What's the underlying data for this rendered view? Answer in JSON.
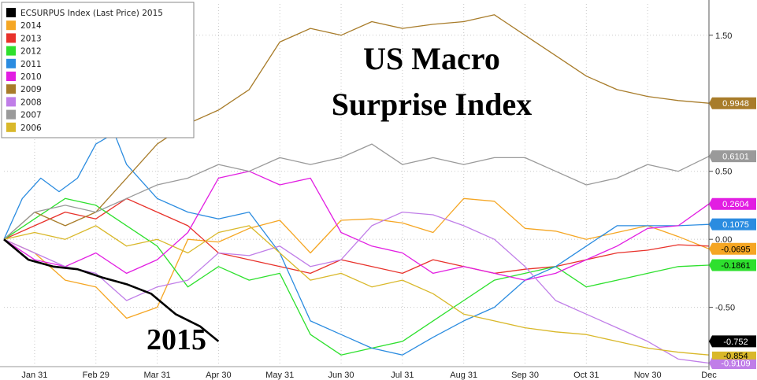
{
  "chart_data": {
    "type": "line",
    "title_lines": [
      "US Macro",
      "Surprise Index"
    ],
    "annotation": "2015",
    "x_ticks": [
      "Jan 31",
      "Feb 29",
      "Mar 31",
      "Apr 30",
      "May 31",
      "Jun 30",
      "Jul 31",
      "Aug 31",
      "Sep 30",
      "Oct 31",
      "Nov 30",
      "Dec"
    ],
    "y_ticks": [
      "1.50",
      "0.50",
      "0.00",
      "-0.50"
    ],
    "y_tick_values": [
      1.5,
      0.5,
      0.0,
      -0.5
    ],
    "ylim": [
      -0.93,
      1.73
    ],
    "x_range_months": [
      0,
      11.5
    ],
    "grid": true,
    "legend_position": "top-left",
    "series": [
      {
        "name": "ECSURPUS Index (Last Price) 2015",
        "color": "#000000",
        "last_label": "-0.752",
        "points": [
          [
            0,
            0
          ],
          [
            0.4,
            -0.15
          ],
          [
            0.8,
            -0.2
          ],
          [
            1.2,
            -0.22
          ],
          [
            1.6,
            -0.28
          ],
          [
            2.0,
            -0.33
          ],
          [
            2.4,
            -0.4
          ],
          [
            2.8,
            -0.55
          ],
          [
            3.2,
            -0.64
          ],
          [
            3.5,
            -0.75
          ]
        ]
      },
      {
        "name": "2014",
        "color": "#f5a623",
        "last_label": "-0.0695",
        "points": [
          [
            0,
            0
          ],
          [
            0.5,
            -0.1
          ],
          [
            1.0,
            -0.3
          ],
          [
            1.5,
            -0.35
          ],
          [
            2.0,
            -0.58
          ],
          [
            2.5,
            -0.5
          ],
          [
            3.0,
            0.0
          ],
          [
            3.5,
            -0.02
          ],
          [
            4.0,
            0.08
          ],
          [
            4.5,
            0.14
          ],
          [
            5.0,
            -0.1
          ],
          [
            5.5,
            0.14
          ],
          [
            6.0,
            0.15
          ],
          [
            6.5,
            0.12
          ],
          [
            7.0,
            0.05
          ],
          [
            7.5,
            0.3
          ],
          [
            8.0,
            0.28
          ],
          [
            8.5,
            0.08
          ],
          [
            9.0,
            0.06
          ],
          [
            9.5,
            0.0
          ],
          [
            10.0,
            0.05
          ],
          [
            10.5,
            0.1
          ],
          [
            11.0,
            0.02
          ],
          [
            11.5,
            -0.07
          ]
        ]
      },
      {
        "name": "2013",
        "color": "#e8322b",
        "last_label": "",
        "points": [
          [
            0,
            0
          ],
          [
            0.5,
            0.1
          ],
          [
            1.0,
            0.2
          ],
          [
            1.5,
            0.15
          ],
          [
            2.0,
            0.3
          ],
          [
            2.5,
            0.2
          ],
          [
            3.0,
            0.1
          ],
          [
            3.5,
            -0.1
          ],
          [
            4.0,
            -0.15
          ],
          [
            4.5,
            -0.2
          ],
          [
            5.0,
            -0.25
          ],
          [
            5.5,
            -0.15
          ],
          [
            6.0,
            -0.2
          ],
          [
            6.5,
            -0.25
          ],
          [
            7.0,
            -0.15
          ],
          [
            7.5,
            -0.2
          ],
          [
            8.0,
            -0.25
          ],
          [
            8.5,
            -0.22
          ],
          [
            9.0,
            -0.2
          ],
          [
            9.5,
            -0.15
          ],
          [
            10.0,
            -0.1
          ],
          [
            10.5,
            -0.08
          ],
          [
            11.0,
            -0.04
          ],
          [
            11.5,
            -0.05
          ]
        ]
      },
      {
        "name": "2012",
        "color": "#2ee02e",
        "last_label": "-0.1861",
        "points": [
          [
            0,
            0
          ],
          [
            0.5,
            0.15
          ],
          [
            1.0,
            0.3
          ],
          [
            1.5,
            0.25
          ],
          [
            2.0,
            0.1
          ],
          [
            2.5,
            -0.05
          ],
          [
            3.0,
            -0.35
          ],
          [
            3.5,
            -0.2
          ],
          [
            4.0,
            -0.3
          ],
          [
            4.5,
            -0.25
          ],
          [
            5.0,
            -0.7
          ],
          [
            5.5,
            -0.85
          ],
          [
            6.0,
            -0.8
          ],
          [
            6.5,
            -0.75
          ],
          [
            7.0,
            -0.6
          ],
          [
            7.5,
            -0.45
          ],
          [
            8.0,
            -0.3
          ],
          [
            8.5,
            -0.25
          ],
          [
            9.0,
            -0.2
          ],
          [
            9.5,
            -0.35
          ],
          [
            10.0,
            -0.3
          ],
          [
            10.5,
            -0.25
          ],
          [
            11.0,
            -0.2
          ],
          [
            11.5,
            -0.19
          ]
        ]
      },
      {
        "name": "2011",
        "color": "#2b8ce0",
        "last_label": "0.1075",
        "points": [
          [
            0,
            0
          ],
          [
            0.3,
            0.3
          ],
          [
            0.6,
            0.45
          ],
          [
            0.9,
            0.35
          ],
          [
            1.2,
            0.45
          ],
          [
            1.5,
            0.7
          ],
          [
            1.8,
            0.78
          ],
          [
            2.0,
            0.55
          ],
          [
            2.5,
            0.3
          ],
          [
            3.0,
            0.2
          ],
          [
            3.5,
            0.15
          ],
          [
            4.0,
            0.2
          ],
          [
            4.5,
            -0.1
          ],
          [
            5.0,
            -0.6
          ],
          [
            5.5,
            -0.7
          ],
          [
            6.0,
            -0.8
          ],
          [
            6.5,
            -0.85
          ],
          [
            7.0,
            -0.72
          ],
          [
            7.5,
            -0.6
          ],
          [
            8.0,
            -0.5
          ],
          [
            8.5,
            -0.3
          ],
          [
            9.0,
            -0.2
          ],
          [
            9.5,
            -0.05
          ],
          [
            10.0,
            0.1
          ],
          [
            10.5,
            0.1
          ],
          [
            11.0,
            0.1
          ],
          [
            11.5,
            0.11
          ]
        ]
      },
      {
        "name": "2010",
        "color": "#e21ee2",
        "last_label": "0.2604",
        "points": [
          [
            0,
            0
          ],
          [
            0.5,
            -0.15
          ],
          [
            1.0,
            -0.2
          ],
          [
            1.5,
            -0.1
          ],
          [
            2.0,
            -0.25
          ],
          [
            2.5,
            -0.15
          ],
          [
            3.0,
            0.05
          ],
          [
            3.5,
            0.45
          ],
          [
            4.0,
            0.5
          ],
          [
            4.5,
            0.4
          ],
          [
            5.0,
            0.45
          ],
          [
            5.5,
            0.05
          ],
          [
            6.0,
            -0.05
          ],
          [
            6.5,
            -0.1
          ],
          [
            7.0,
            -0.25
          ],
          [
            7.5,
            -0.2
          ],
          [
            8.0,
            -0.25
          ],
          [
            8.5,
            -0.3
          ],
          [
            9.0,
            -0.25
          ],
          [
            9.5,
            -0.15
          ],
          [
            10.0,
            -0.05
          ],
          [
            10.5,
            0.08
          ],
          [
            11.0,
            0.1
          ],
          [
            11.5,
            0.26
          ]
        ]
      },
      {
        "name": "2009",
        "color": "#a87c2a",
        "last_label": "0.9948",
        "points": [
          [
            0,
            0
          ],
          [
            0.5,
            0.2
          ],
          [
            1.0,
            0.1
          ],
          [
            1.5,
            0.2
          ],
          [
            2.0,
            0.45
          ],
          [
            2.5,
            0.7
          ],
          [
            3.0,
            0.85
          ],
          [
            3.5,
            0.95
          ],
          [
            4.0,
            1.1
          ],
          [
            4.5,
            1.45
          ],
          [
            5.0,
            1.55
          ],
          [
            5.5,
            1.5
          ],
          [
            6.0,
            1.6
          ],
          [
            6.5,
            1.55
          ],
          [
            7.0,
            1.58
          ],
          [
            7.5,
            1.6
          ],
          [
            8.0,
            1.65
          ],
          [
            8.5,
            1.5
          ],
          [
            9.0,
            1.35
          ],
          [
            9.5,
            1.2
          ],
          [
            10.0,
            1.1
          ],
          [
            10.5,
            1.05
          ],
          [
            11.0,
            1.02
          ],
          [
            11.5,
            1.0
          ]
        ]
      },
      {
        "name": "2008",
        "color": "#c07ee8",
        "last_label": "-0.9109",
        "points": [
          [
            0,
            0
          ],
          [
            0.5,
            -0.1
          ],
          [
            1.0,
            -0.2
          ],
          [
            1.5,
            -0.25
          ],
          [
            2.0,
            -0.45
          ],
          [
            2.5,
            -0.35
          ],
          [
            3.0,
            -0.3
          ],
          [
            3.5,
            -0.1
          ],
          [
            4.0,
            -0.12
          ],
          [
            4.5,
            -0.05
          ],
          [
            5.0,
            -0.2
          ],
          [
            5.5,
            -0.15
          ],
          [
            6.0,
            0.1
          ],
          [
            6.5,
            0.2
          ],
          [
            7.0,
            0.18
          ],
          [
            7.5,
            0.1
          ],
          [
            8.0,
            0.0
          ],
          [
            8.5,
            -0.2
          ],
          [
            9.0,
            -0.45
          ],
          [
            9.5,
            -0.55
          ],
          [
            10.0,
            -0.65
          ],
          [
            10.5,
            -0.75
          ],
          [
            11.0,
            -0.88
          ],
          [
            11.5,
            -0.91
          ]
        ]
      },
      {
        "name": "2007",
        "color": "#9a9a9a",
        "last_label": "0.6101",
        "points": [
          [
            0,
            0
          ],
          [
            0.5,
            0.2
          ],
          [
            1.0,
            0.25
          ],
          [
            1.5,
            0.2
          ],
          [
            2.0,
            0.3
          ],
          [
            2.5,
            0.4
          ],
          [
            3.0,
            0.45
          ],
          [
            3.5,
            0.55
          ],
          [
            4.0,
            0.5
          ],
          [
            4.5,
            0.6
          ],
          [
            5.0,
            0.55
          ],
          [
            5.5,
            0.6
          ],
          [
            6.0,
            0.7
          ],
          [
            6.5,
            0.55
          ],
          [
            7.0,
            0.6
          ],
          [
            7.5,
            0.55
          ],
          [
            8.0,
            0.6
          ],
          [
            8.5,
            0.6
          ],
          [
            9.0,
            0.5
          ],
          [
            9.5,
            0.4
          ],
          [
            10.0,
            0.45
          ],
          [
            10.5,
            0.55
          ],
          [
            11.0,
            0.5
          ],
          [
            11.5,
            0.61
          ]
        ]
      },
      {
        "name": "2006",
        "color": "#d9b82a",
        "last_label": "",
        "points": [
          [
            0,
            0
          ],
          [
            0.5,
            0.05
          ],
          [
            1.0,
            0.0
          ],
          [
            1.5,
            0.1
          ],
          [
            2.0,
            -0.05
          ],
          [
            2.5,
            0.0
          ],
          [
            3.0,
            -0.1
          ],
          [
            3.5,
            0.05
          ],
          [
            4.0,
            0.1
          ],
          [
            4.5,
            -0.1
          ],
          [
            5.0,
            -0.3
          ],
          [
            5.5,
            -0.25
          ],
          [
            6.0,
            -0.35
          ],
          [
            6.5,
            -0.3
          ],
          [
            7.0,
            -0.4
          ],
          [
            7.5,
            -0.55
          ],
          [
            8.0,
            -0.6
          ],
          [
            8.5,
            -0.65
          ],
          [
            9.0,
            -0.68
          ],
          [
            9.5,
            -0.7
          ],
          [
            10.0,
            -0.75
          ],
          [
            10.5,
            -0.8
          ],
          [
            11.0,
            -0.83
          ],
          [
            11.5,
            -0.85
          ]
        ]
      }
    ],
    "extra_last_labels": [
      "-0.854"
    ]
  }
}
